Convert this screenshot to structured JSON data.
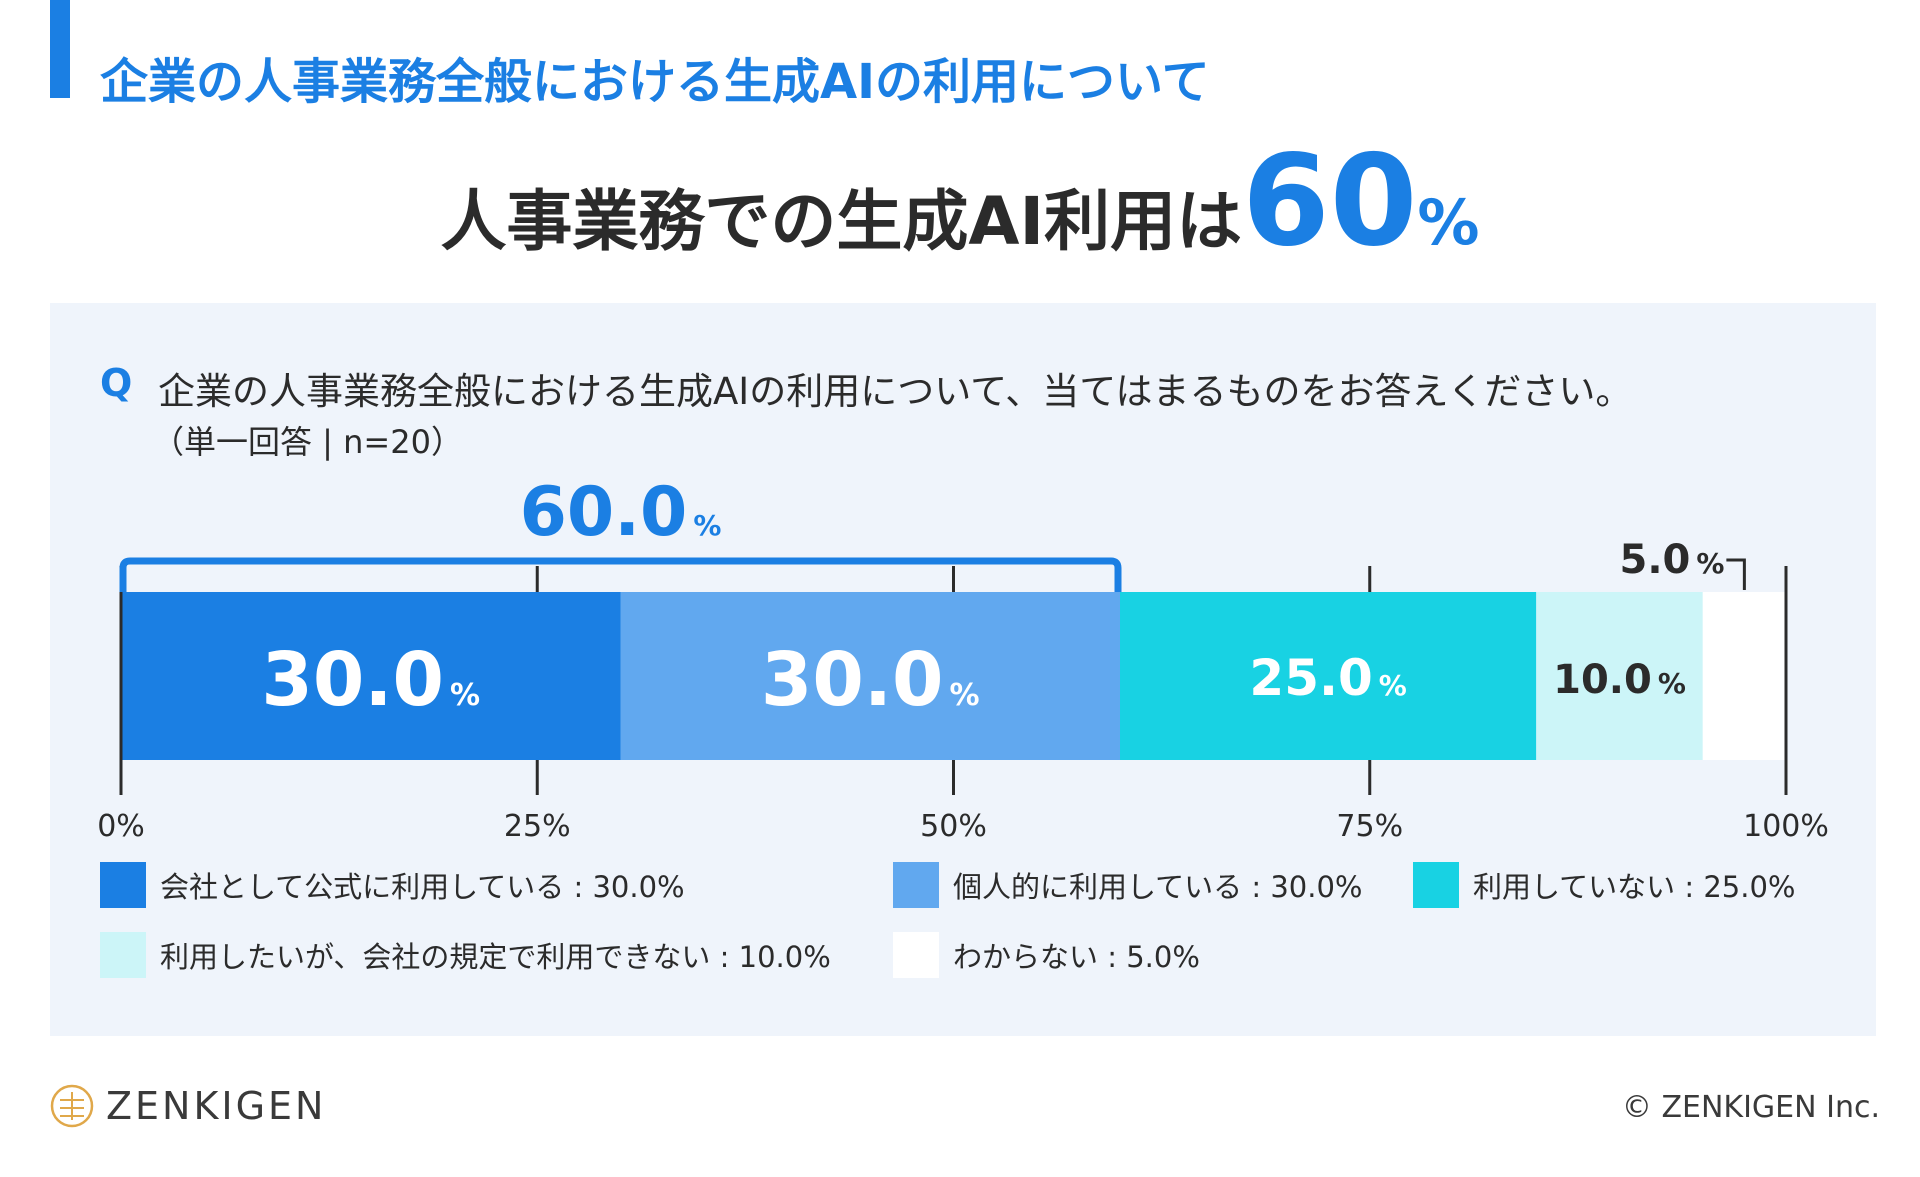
{
  "section_title": "企業の人事業務全般における生成AIの利用について",
  "headline": {
    "text": "人事業務での生成AI利用は",
    "number": "60",
    "unit": "%"
  },
  "question": {
    "mark": "Q",
    "text": "企業の人事業務全般における生成AIの利用について、当てはまるものをお答えください。",
    "note": "（単一回答 | n=20）"
  },
  "chart_data": {
    "type": "bar",
    "orientation": "horizontal-stacked",
    "xlim": [
      0,
      100
    ],
    "ticks": [
      "0%",
      "25%",
      "50%",
      "75%",
      "100%"
    ],
    "tick_values": [
      0,
      25,
      50,
      75,
      100
    ],
    "bracket": {
      "from": 0,
      "to": 60,
      "label": "60.0",
      "unit": "%"
    },
    "series": [
      {
        "name": "会社として公式に利用している",
        "value": 30.0,
        "label": "30.0",
        "legend": "会社として公式に利用している : 30.0%",
        "color": "#1b7fe3",
        "text_color": "#ffffff"
      },
      {
        "name": "個人的に利用している",
        "value": 30.0,
        "label": "30.0",
        "legend": "個人的に利用している : 30.0%",
        "color": "#61a8ef",
        "text_color": "#ffffff"
      },
      {
        "name": "利用していない",
        "value": 25.0,
        "label": "25.0",
        "legend": "利用していない : 25.0%",
        "color": "#18d2e3",
        "text_color": "#ffffff"
      },
      {
        "name": "利用したいが、会社の規定で利用できない",
        "value": 10.0,
        "label": "10.0",
        "legend": "利用したいが、会社の規定で利用できない : 10.0%",
        "color": "#ccf5f8",
        "text_color": "#2b2b2b"
      },
      {
        "name": "わからない",
        "value": 5.0,
        "label": "5.0",
        "legend": "わからない : 5.0%",
        "color": "#ffffff",
        "text_color": "#2b2b2b"
      }
    ],
    "unit": "%"
  },
  "logo": {
    "text": "ZENKIGEN",
    "icon": "zenkigen-emblem-icon",
    "color": "#e0a84a"
  },
  "copyright": "© ZENKIGEN Inc."
}
